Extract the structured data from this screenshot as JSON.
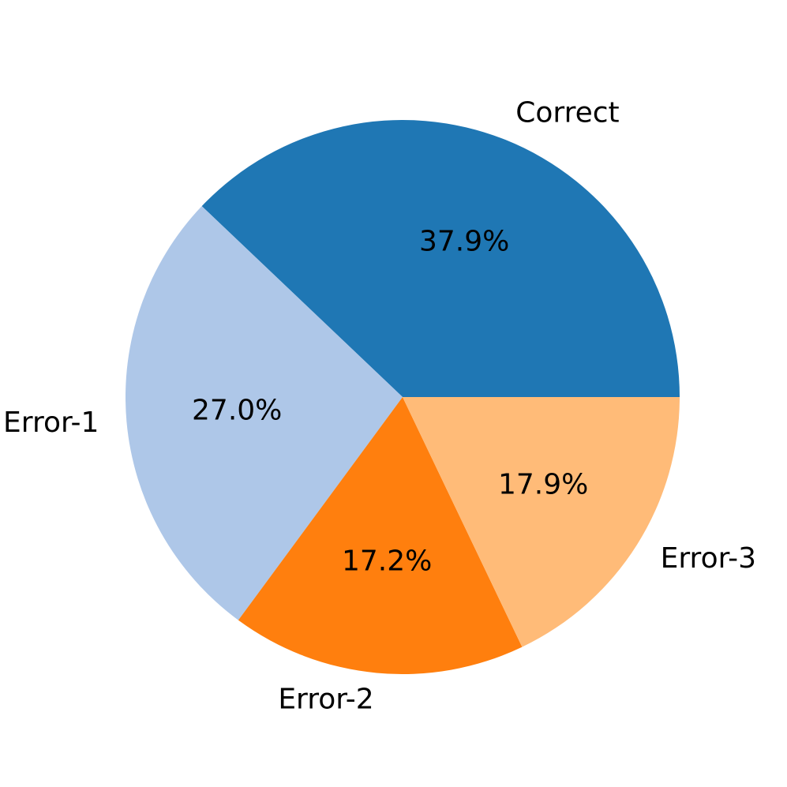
{
  "chart_data": {
    "type": "pie",
    "categories": [
      "Correct",
      "Error-1",
      "Error-2",
      "Error-3"
    ],
    "values": [
      37.9,
      27.0,
      17.2,
      17.9
    ],
    "value_labels": [
      "37.9%",
      "27.0%",
      "17.2%",
      "17.9%"
    ],
    "colors": [
      "#1f77b4",
      "#aec7e8",
      "#ff7f0e",
      "#ffbb78"
    ]
  }
}
